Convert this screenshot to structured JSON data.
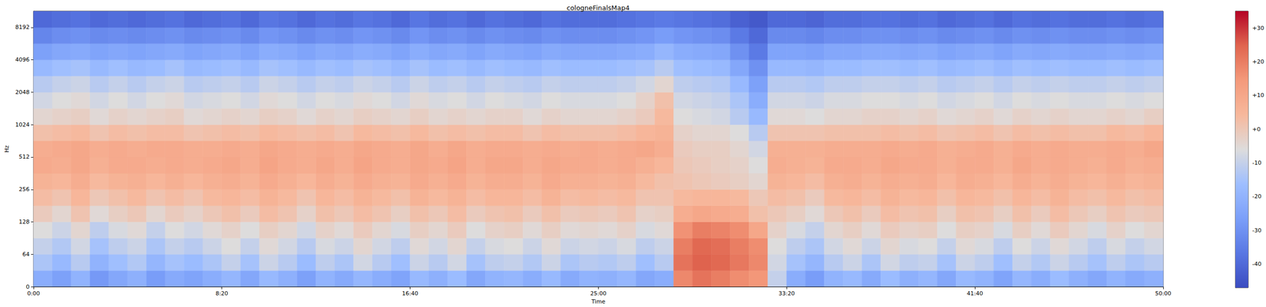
{
  "chart_data": {
    "type": "heatmap",
    "title": "cologneFinalsMap4",
    "x_label": "Time",
    "y_label": "Hz",
    "xlim": [
      0,
      3000
    ],
    "xticks": [
      {
        "value": 0,
        "label": "0:00"
      },
      {
        "value": 500,
        "label": "8:20"
      },
      {
        "value": 1000,
        "label": "16:40"
      },
      {
        "value": 1500,
        "label": "25:00"
      },
      {
        "value": 2000,
        "label": "33:20"
      },
      {
        "value": 2500,
        "label": "41:40"
      },
      {
        "value": 3000,
        "label": "50:00"
      }
    ],
    "ylim": [
      0,
      11025
    ],
    "yticks": [
      0,
      64,
      128,
      256,
      512,
      1024,
      2048,
      4096,
      8192
    ],
    "x_edges": [
      0,
      50,
      100,
      150,
      200,
      250,
      300,
      350,
      400,
      450,
      500,
      550,
      600,
      650,
      700,
      750,
      800,
      850,
      900,
      950,
      1000,
      1050,
      1100,
      1150,
      1200,
      1250,
      1300,
      1350,
      1400,
      1450,
      1500,
      1550,
      1600,
      1650,
      1700,
      1750,
      1800,
      1850,
      1900,
      1950,
      2000,
      2050,
      2100,
      2150,
      2200,
      2250,
      2300,
      2350,
      2400,
      2450,
      2500,
      2550,
      2600,
      2650,
      2700,
      2750,
      2800,
      2850,
      2900,
      2950,
      3000
    ],
    "y_edges": [
      0,
      32,
      64,
      91,
      128,
      181,
      256,
      362,
      512,
      724,
      1024,
      1448,
      2048,
      2896,
      4096,
      5793,
      8192,
      11025
    ],
    "cells": [
      [
        -22,
        -26,
        -20,
        -28,
        -24,
        -21,
        -27,
        -23,
        -25,
        -22,
        -19,
        -24,
        -18,
        -21,
        -26,
        -20,
        -23,
        -19,
        -22,
        -25,
        -18,
        -21,
        -17,
        -24,
        -20,
        -19,
        -22,
        -18,
        -23,
        -20,
        -21,
        -19,
        -24,
        -22,
        18,
        22,
        20,
        17,
        15,
        -10,
        -22,
        -27,
        -20,
        -18,
        -23,
        -17,
        -21,
        -19,
        -24,
        -18,
        -20,
        -25,
        -19,
        -22,
        -17,
        -21,
        -24,
        -20,
        -23,
        -21
      ],
      [
        -14,
        -18,
        -12,
        -20,
        -16,
        -13,
        -19,
        -15,
        -17,
        -14,
        -10,
        -15,
        -9,
        -12,
        -17,
        -11,
        -14,
        -8,
        -12,
        -16,
        -9,
        -12,
        -8,
        -15,
        -11,
        -10,
        -13,
        -9,
        -14,
        -12,
        -13,
        -11,
        -16,
        -12,
        22,
        25,
        24,
        21,
        18,
        -8,
        -15,
        -19,
        -12,
        -9,
        -14,
        -8,
        -11,
        -10,
        -15,
        -9,
        -11,
        -16,
        -10,
        -13,
        -9,
        -12,
        -15,
        -11,
        -14,
        -12
      ],
      [
        -10,
        -13,
        -8,
        -15,
        -11,
        -9,
        -14,
        -10,
        -12,
        -9,
        -6,
        -10,
        -5,
        -8,
        -12,
        -7,
        -9,
        -4,
        -8,
        -11,
        -5,
        -8,
        -4,
        -10,
        -7,
        -6,
        -9,
        -5,
        -9,
        -8,
        -9,
        -7,
        -11,
        -9,
        20,
        24,
        23,
        20,
        17,
        -6,
        -11,
        -14,
        -8,
        -5,
        -9,
        -4,
        -7,
        -6,
        -10,
        -5,
        -7,
        -11,
        -6,
        -9,
        -5,
        -8,
        -11,
        -7,
        -10,
        -8
      ],
      [
        -6,
        -9,
        -4,
        -11,
        -7,
        -5,
        -10,
        -6,
        -8,
        -5,
        -3,
        -6,
        -2,
        -4,
        -8,
        -3,
        -5,
        -1,
        -4,
        -7,
        -2,
        -4,
        -1,
        -6,
        -3,
        -2,
        -5,
        -2,
        -5,
        -4,
        -5,
        -3,
        -7,
        -5,
        16,
        20,
        19,
        17,
        10,
        -3,
        -7,
        -10,
        -4,
        -2,
        -5,
        -1,
        -3,
        -2,
        -6,
        -2,
        -3,
        -7,
        -2,
        -5,
        -1,
        -4,
        -7,
        -3,
        -6,
        -4
      ],
      [
        -1,
        -4,
        1,
        -5,
        -2,
        0,
        -4,
        -1,
        -3,
        0,
        2,
        -1,
        3,
        1,
        -3,
        2,
        0,
        3,
        1,
        -2,
        2,
        0,
        3,
        -1,
        1,
        2,
        -1,
        2,
        -1,
        0,
        -1,
        1,
        -3,
        -2,
        8,
        10,
        9,
        8,
        2,
        0,
        -2,
        -5,
        0,
        2,
        -1,
        3,
        1,
        2,
        -2,
        2,
        1,
        -2,
        2,
        -1,
        3,
        0,
        -2,
        1,
        -1,
        0
      ],
      [
        3,
        1,
        5,
        0,
        2,
        4,
        1,
        3,
        1,
        4,
        5,
        3,
        6,
        4,
        1,
        5,
        3,
        6,
        4,
        2,
        6,
        4,
        6,
        3,
        5,
        5,
        3,
        6,
        3,
        4,
        3,
        4,
        1,
        1,
        4,
        5,
        5,
        4,
        0,
        3,
        2,
        -1,
        4,
        5,
        3,
        6,
        4,
        5,
        2,
        5,
        4,
        2,
        5,
        3,
        6,
        3,
        2,
        4,
        2,
        3
      ],
      [
        6,
        5,
        8,
        4,
        6,
        7,
        5,
        7,
        5,
        7,
        8,
        6,
        9,
        7,
        5,
        8,
        6,
        9,
        7,
        6,
        9,
        7,
        9,
        6,
        8,
        8,
        6,
        9,
        7,
        7,
        6,
        7,
        4,
        2,
        1,
        0,
        -1,
        -2,
        -4,
        6,
        5,
        3,
        7,
        8,
        6,
        8,
        7,
        8,
        5,
        8,
        7,
        5,
        8,
        6,
        8,
        6,
        5,
        7,
        5,
        6
      ],
      [
        9,
        8,
        10,
        7,
        9,
        9,
        8,
        9,
        8,
        9,
        10,
        8,
        11,
        9,
        8,
        10,
        8,
        11,
        9,
        8,
        10,
        9,
        11,
        8,
        10,
        10,
        8,
        10,
        9,
        9,
        8,
        9,
        7,
        5,
        0,
        -1,
        -2,
        -3,
        -6,
        8,
        7,
        6,
        9,
        9,
        8,
        10,
        9,
        9,
        7,
        9,
        9,
        7,
        10,
        8,
        9,
        8,
        7,
        9,
        7,
        8
      ],
      [
        8,
        9,
        10,
        8,
        9,
        8,
        9,
        9,
        8,
        8,
        9,
        8,
        10,
        9,
        8,
        9,
        8,
        10,
        9,
        8,
        10,
        8,
        10,
        8,
        9,
        9,
        8,
        9,
        8,
        9,
        8,
        9,
        10,
        8,
        -1,
        -2,
        -2,
        -4,
        -8,
        7,
        7,
        7,
        8,
        8,
        8,
        9,
        8,
        9,
        7,
        8,
        9,
        7,
        9,
        8,
        9,
        8,
        8,
        9,
        8,
        10
      ],
      [
        2,
        3,
        4,
        1,
        3,
        2,
        3,
        3,
        1,
        2,
        3,
        2,
        4,
        3,
        2,
        3,
        1,
        4,
        3,
        2,
        4,
        2,
        3,
        2,
        3,
        3,
        1,
        3,
        2,
        2,
        2,
        3,
        5,
        6,
        -3,
        -4,
        -4,
        -6,
        -12,
        1,
        1,
        1,
        2,
        2,
        2,
        3,
        2,
        3,
        1,
        2,
        3,
        1,
        3,
        2,
        3,
        2,
        2,
        4,
        3,
        5
      ],
      [
        -4,
        -3,
        -2,
        -5,
        -3,
        -4,
        -3,
        -2,
        -5,
        -4,
        -3,
        -4,
        -2,
        -3,
        -5,
        -3,
        -4,
        -2,
        -3,
        -4,
        -2,
        -4,
        -3,
        -4,
        -3,
        -3,
        -5,
        -3,
        -4,
        -4,
        -4,
        -3,
        -1,
        4,
        -6,
        -7,
        -8,
        -12,
        -18,
        -5,
        -5,
        -6,
        -4,
        -4,
        -3,
        -3,
        -4,
        -3,
        -5,
        -4,
        -3,
        -5,
        -3,
        -4,
        -3,
        -4,
        -4,
        -3,
        -4,
        -2
      ],
      [
        -8,
        -6,
        -5,
        -8,
        -6,
        -8,
        -6,
        -5,
        -8,
        -7,
        -6,
        -8,
        -5,
        -6,
        -8,
        -6,
        -7,
        -5,
        -6,
        -8,
        -5,
        -7,
        -6,
        -8,
        -6,
        -7,
        -8,
        -6,
        -7,
        -7,
        -7,
        -6,
        -3,
        2,
        -8,
        -9,
        -10,
        -14,
        -22,
        -8,
        -8,
        -9,
        -7,
        -7,
        -6,
        -6,
        -7,
        -6,
        -8,
        -7,
        -6,
        -8,
        -6,
        -7,
        -6,
        -7,
        -7,
        -6,
        -7,
        -6
      ],
      [
        -12,
        -10,
        -9,
        -12,
        -10,
        -12,
        -10,
        -9,
        -12,
        -11,
        -10,
        -12,
        -9,
        -10,
        -12,
        -10,
        -11,
        -9,
        -10,
        -12,
        -9,
        -11,
        -10,
        -12,
        -10,
        -11,
        -12,
        -10,
        -11,
        -11,
        -11,
        -10,
        -8,
        -4,
        -11,
        -12,
        -13,
        -18,
        -26,
        -12,
        -12,
        -13,
        -11,
        -11,
        -10,
        -10,
        -11,
        -10,
        -12,
        -11,
        -10,
        -12,
        -10,
        -11,
        -10,
        -11,
        -11,
        -10,
        -11,
        -10
      ],
      [
        -18,
        -16,
        -15,
        -18,
        -16,
        -18,
        -17,
        -15,
        -18,
        -17,
        -16,
        -18,
        -15,
        -16,
        -18,
        -16,
        -17,
        -15,
        -16,
        -18,
        -15,
        -17,
        -16,
        -18,
        -16,
        -17,
        -18,
        -16,
        -17,
        -17,
        -17,
        -16,
        -15,
        -12,
        -16,
        -17,
        -18,
        -24,
        -30,
        -18,
        -18,
        -19,
        -17,
        -17,
        -16,
        -16,
        -17,
        -16,
        -18,
        -17,
        -16,
        -18,
        -16,
        -17,
        -16,
        -17,
        -17,
        -16,
        -17,
        -16
      ],
      [
        -26,
        -24,
        -23,
        -25,
        -24,
        -25,
        -24,
        -23,
        -25,
        -24,
        -23,
        -25,
        -22,
        -23,
        -25,
        -23,
        -24,
        -22,
        -23,
        -25,
        -22,
        -24,
        -23,
        -25,
        -23,
        -24,
        -25,
        -23,
        -24,
        -24,
        -24,
        -23,
        -22,
        -19,
        -22,
        -23,
        -24,
        -30,
        -36,
        -25,
        -25,
        -26,
        -24,
        -24,
        -23,
        -23,
        -24,
        -23,
        -25,
        -24,
        -23,
        -25,
        -23,
        -24,
        -23,
        -24,
        -24,
        -23,
        -24,
        -23
      ],
      [
        -33,
        -31,
        -30,
        -32,
        -31,
        -32,
        -31,
        -30,
        -32,
        -31,
        -30,
        -32,
        -29,
        -30,
        -32,
        -30,
        -31,
        -29,
        -30,
        -32,
        -29,
        -31,
        -30,
        -32,
        -30,
        -31,
        -32,
        -30,
        -31,
        -31,
        -31,
        -30,
        -29,
        -27,
        -29,
        -30,
        -31,
        -36,
        -40,
        -32,
        -32,
        -33,
        -31,
        -31,
        -30,
        -30,
        -31,
        -30,
        -32,
        -31,
        -30,
        -32,
        -30,
        -31,
        -30,
        -31,
        -31,
        -30,
        -31,
        -30
      ],
      [
        -40,
        -39,
        -38,
        -40,
        -39,
        -40,
        -39,
        -38,
        -40,
        -39,
        -38,
        -40,
        -37,
        -38,
        -40,
        -38,
        -39,
        -37,
        -38,
        -40,
        -37,
        -39,
        -38,
        -40,
        -38,
        -39,
        -40,
        -38,
        -39,
        -39,
        -39,
        -38,
        -37,
        -36,
        -37,
        -38,
        -39,
        -42,
        -44,
        -40,
        -40,
        -41,
        -39,
        -39,
        -38,
        -38,
        -39,
        -38,
        -40,
        -39,
        -38,
        -40,
        -38,
        -39,
        -38,
        -39,
        -39,
        -38,
        -39,
        -38
      ]
    ],
    "colorbar": {
      "range": [
        -47,
        35
      ],
      "ticks": [
        {
          "value": 30,
          "label": "+30"
        },
        {
          "value": 20,
          "label": "+20"
        },
        {
          "value": 10,
          "label": "+10"
        },
        {
          "value": 0,
          "label": "+0"
        },
        -10,
        -20,
        -30,
        -40
      ]
    }
  }
}
